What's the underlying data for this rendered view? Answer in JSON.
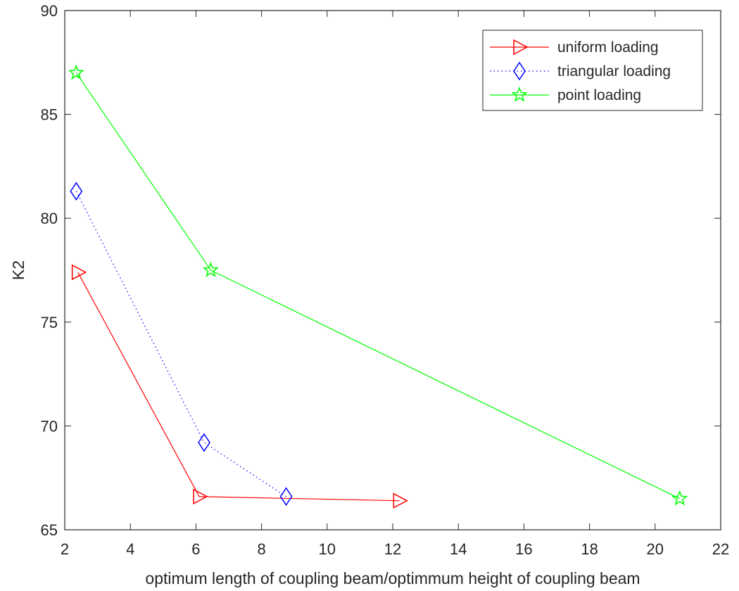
{
  "chart_data": {
    "type": "line",
    "title": "",
    "xlabel": "optimum length of coupling beam/optimmum height of coupling beam",
    "ylabel": "K2",
    "xlim": [
      2,
      22
    ],
    "ylim": [
      65,
      90
    ],
    "xticks": [
      2,
      4,
      6,
      8,
      10,
      12,
      14,
      16,
      18,
      20,
      22
    ],
    "yticks": [
      65,
      70,
      75,
      80,
      85,
      90
    ],
    "xtick_labels": [
      "2",
      "4",
      "6",
      "8",
      "10",
      "12",
      "14",
      "16",
      "18",
      "20",
      "22"
    ],
    "ytick_labels": [
      "65",
      "70",
      "75",
      "80",
      "85",
      "90"
    ],
    "grid": false,
    "legend_position": "top-right",
    "series": [
      {
        "name": "uniform loading",
        "color": "#ff0000",
        "line_style": "solid",
        "marker": "triangle-right",
        "x": [
          2.4,
          6.1,
          12.2
        ],
        "y": [
          77.4,
          66.6,
          66.4
        ]
      },
      {
        "name": "triangular loading",
        "color": "#0000ff",
        "line_style": "dotted",
        "marker": "diamond",
        "x": [
          2.35,
          6.25,
          8.75
        ],
        "y": [
          81.3,
          69.2,
          66.6
        ]
      },
      {
        "name": "point loading",
        "color": "#00ff00",
        "line_style": "solid",
        "marker": "star",
        "x": [
          2.35,
          6.45,
          20.75
        ],
        "y": [
          87.0,
          77.5,
          66.5
        ]
      }
    ]
  }
}
